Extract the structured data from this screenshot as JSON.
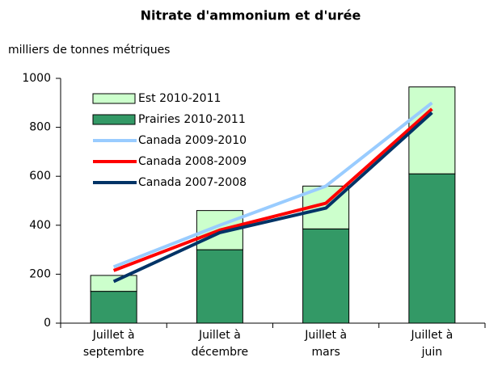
{
  "chart_data": {
    "type": "bar",
    "title": "Nitrate d'ammonium et d'urée",
    "subtitle": "milliers de tonnes métriques",
    "categories": [
      [
        "Juillet à",
        "septembre"
      ],
      [
        "Juillet à",
        "décembre"
      ],
      [
        "Juillet à",
        "mars"
      ],
      [
        "Juillet à",
        "juin"
      ]
    ],
    "series": [
      {
        "name": "Est 2010-2011",
        "type": "bar",
        "color": "#ccffcc",
        "values": [
          65,
          160,
          175,
          355
        ]
      },
      {
        "name": "Prairies 2010-2011",
        "type": "bar",
        "color": "#339966",
        "values": [
          130,
          300,
          385,
          610
        ]
      },
      {
        "name": "Canada 2009-2010",
        "type": "line",
        "color": "#99ccff",
        "values": [
          230,
          400,
          560,
          900
        ]
      },
      {
        "name": "Canada 2008-2009",
        "type": "line",
        "color": "#ff0000",
        "values": [
          215,
          380,
          490,
          875
        ]
      },
      {
        "name": "Canada 2007-2008",
        "type": "line",
        "color": "#003366",
        "values": [
          170,
          370,
          470,
          860
        ]
      }
    ],
    "ylim": [
      0,
      1000
    ],
    "yticks": [
      0,
      200,
      400,
      600,
      800,
      1000
    ],
    "legend": "upper left"
  }
}
